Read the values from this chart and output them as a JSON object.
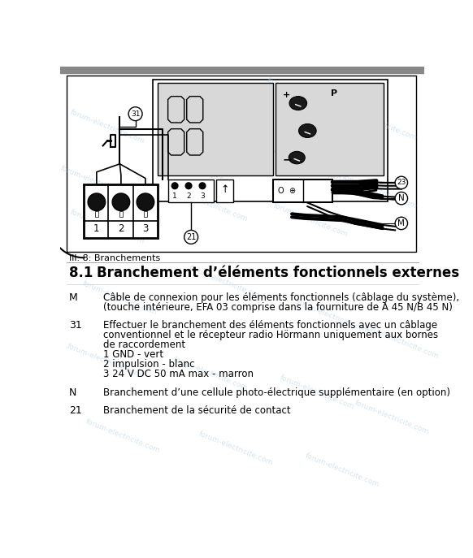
{
  "bg_color": "#ffffff",
  "top_bar_color": "#888888",
  "watermark_text": "forum-electricite.com",
  "watermark_color": "#b8cfe0",
  "watermark_alpha": 0.55,
  "caption": "Ill. 8: Branchements",
  "section_number": "8.1",
  "section_title": "Branchement d’éléments fonctionnels externes",
  "entries": [
    {
      "label": "M",
      "text": "Câble de connexion pour les éléments fonctionnels (câblage du système),\n(touche intérieure, EFA 03 comprise dans la fourniture de A 45 N/B 45 N)"
    },
    {
      "label": "31",
      "text": "Effectuer le branchement des éléments fonctionnels avec un câblage\nconventionnel et le récepteur radio Hörmann uniquement aux bornes\nde raccordement\n1 GND - vert\n2 impulsion - blanc\n3 24 V DC 50 mA max - marron"
    },
    {
      "label": "N",
      "text": "Branchement d’une cellule photo-électrique supplémentaire (en option)"
    },
    {
      "label": "21",
      "text": "Branchement de la sécurité de contact"
    }
  ]
}
